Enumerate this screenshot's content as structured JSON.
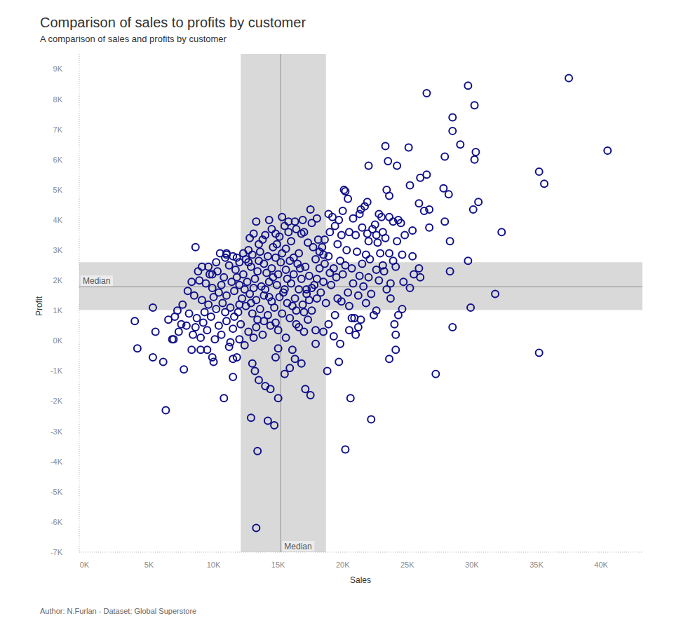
{
  "chart_data": {
    "type": "scatter",
    "title": "Comparison of sales to profits by customer",
    "subtitle": "A comparison of sales and profits by customer",
    "x_label": "Sales",
    "y_label": "Profit",
    "caption": "Author: N.Furlan - Dataset: Global Superstore",
    "color": "#10108a",
    "marker": "open_circle",
    "grid": false,
    "xlim": [
      -400,
      43200
    ],
    "ylim": [
      -7000,
      9500
    ],
    "xticks": [
      {
        "value": 0,
        "label": "0K"
      },
      {
        "value": 5000,
        "label": "5K"
      },
      {
        "value": 10000,
        "label": "10K"
      },
      {
        "value": 15000,
        "label": "15K"
      },
      {
        "value": 20000,
        "label": "20K"
      },
      {
        "value": 25000,
        "label": "25K"
      },
      {
        "value": 30000,
        "label": "30K"
      },
      {
        "value": 35000,
        "label": "35K"
      },
      {
        "value": 40000,
        "label": "40K"
      }
    ],
    "yticks": [
      {
        "value": -7000,
        "label": "-7K"
      },
      {
        "value": -6000,
        "label": "-6K"
      },
      {
        "value": -5000,
        "label": "-5K"
      },
      {
        "value": -4000,
        "label": "-4K"
      },
      {
        "value": -3000,
        "label": "-3K"
      },
      {
        "value": -2000,
        "label": "-2K"
      },
      {
        "value": -1000,
        "label": "-1K"
      },
      {
        "value": 0,
        "label": "0K"
      },
      {
        "value": 1000,
        "label": "1K"
      },
      {
        "value": 2000,
        "label": "2K"
      },
      {
        "value": 3000,
        "label": "3K"
      },
      {
        "value": 4000,
        "label": "4K"
      },
      {
        "value": 5000,
        "label": "5K"
      },
      {
        "value": 6000,
        "label": "6K"
      },
      {
        "value": 7000,
        "label": "7K"
      },
      {
        "value": 8000,
        "label": "8K"
      },
      {
        "value": 9000,
        "label": "9K"
      }
    ],
    "bands": [
      {
        "axis": "x",
        "range": [
          12100,
          18700
        ]
      },
      {
        "axis": "y",
        "range": [
          1020,
          2600
        ]
      }
    ],
    "reference_lines": [
      {
        "axis": "x",
        "value": 15200,
        "label": "Median"
      },
      {
        "axis": "y",
        "value": 1790,
        "label": "Median"
      }
    ],
    "x": [
      37500,
      40500,
      26500,
      29700,
      30200,
      28500,
      28500,
      29100,
      30300,
      30200,
      23300,
      25100,
      27900,
      35200,
      35600,
      22000,
      23500,
      24200,
      26000,
      26500,
      27800,
      28200,
      25200,
      23400,
      23600,
      30500,
      30100,
      26700,
      26300,
      25900,
      32300,
      27900,
      28300,
      26700,
      25400,
      29700,
      25900,
      26000,
      28300,
      25200,
      31800,
      29900,
      28500,
      27200,
      35200,
      24000,
      24100,
      24100,
      23600,
      22200,
      20600,
      20200,
      19700,
      18800,
      17500,
      17100,
      13300,
      13400,
      12900,
      14200,
      14700,
      15000,
      14400,
      14000,
      13500,
      13200,
      13000,
      11500,
      10800,
      6300,
      3900,
      4100,
      5300,
      5500,
      5300,
      6100,
      7700,
      8300,
      8600,
      9000,
      9500,
      9900,
      10000,
      11200,
      11500,
      11800,
      15500,
      15900,
      16300,
      16800,
      17900,
      16100,
      15000,
      14800,
      20100,
      20200,
      20400,
      21900,
      21700,
      21400,
      21300,
      20000,
      19700,
      18900,
      19200,
      20800,
      22800,
      23000,
      23600,
      24300,
      24500,
      23900,
      22500,
      22300,
      21500,
      21900,
      22600,
      23100,
      23300,
      22700,
      22000,
      21000,
      20500,
      19900,
      19000,
      18600,
      18400,
      19600,
      20300,
      21100,
      21800,
      22900,
      23600,
      24600,
      25400,
      24200,
      24800,
      23900,
      23100,
      22600,
      21500,
      20700,
      19800,
      18900,
      18200,
      17700,
      17300,
      16800,
      16400,
      17500,
      15300,
      15800,
      14300,
      14800,
      14000,
      13100,
      12700,
      13500,
      12300,
      11000,
      10500,
      10900,
      9600,
      8800,
      9900,
      11800,
      15500,
      16000,
      15600,
      14600,
      16600,
      17900,
      18600,
      19300,
      20000,
      21300,
      22000,
      22800,
      23700,
      24700,
      25500,
      23400,
      22200,
      21200,
      20400,
      19600,
      18700,
      19900,
      20500,
      21800,
      22600,
      23700,
      24600,
      22400,
      21400,
      20900,
      20700,
      19400,
      18900,
      19300,
      18500,
      17900,
      17000,
      16600,
      17300,
      17600,
      18000,
      17200,
      16400,
      24300,
      21200,
      21000,
      19800,
      20500,
      12000,
      12500,
      13000,
      13600,
      14200,
      14800,
      15300,
      15900,
      16500,
      17100,
      11200,
      11700,
      12300,
      12900,
      13400,
      13900,
      14500,
      15000,
      15600,
      16200,
      16800,
      17400,
      10300,
      10800,
      11400,
      12000,
      12600,
      13200,
      13700,
      14300,
      14900,
      15400,
      16000,
      16600,
      17200,
      17800,
      9400,
      9900,
      10400,
      11000,
      11600,
      12200,
      12800,
      13300,
      13900,
      14500,
      15100,
      15700,
      16300,
      16900,
      8500,
      9100,
      9600,
      10200,
      10700,
      11300,
      11900,
      12500,
      13000,
      13600,
      14200,
      14700,
      15300,
      15900,
      16400,
      7600,
      8100,
      8700,
      9200,
      9800,
      10400,
      11000,
      11500,
      12100,
      12700,
      13300,
      13800,
      14400,
      15000,
      15600,
      7000,
      7300,
      7900,
      8400,
      9000,
      9500,
      10100,
      10600,
      11300,
      12000,
      12400,
      13100,
      6800,
      6900,
      6500,
      7200,
      8000,
      8300,
      8900,
      9700,
      9100,
      11000,
      12700,
      14900,
      13800,
      15100,
      15800,
      16300,
      17000,
      17600,
      18100,
      18500,
      18200,
      18000,
      17600,
      18300,
      16100,
      14000,
      14600,
      13500,
      12400,
      11800,
      10600,
      10000,
      10900,
      12000,
      13900,
      15500,
      16700,
      14100,
      15200,
      13100,
      12900,
      11600,
      14800,
      16200,
      15700,
      13400,
      10200,
      9300,
      8600,
      7500,
      14300,
      17000,
      17400,
      19100,
      19500,
      20800,
      19000,
      18500,
      20200,
      21600,
      23200,
      22100,
      24100,
      19400,
      18000,
      16900,
      14500,
      13300,
      12800,
      11500
    ],
    "values": [
      8700,
      6300,
      8200,
      8450,
      7800,
      7400,
      6950,
      6500,
      6250,
      6000,
      6450,
      6400,
      6100,
      5600,
      5200,
      5800,
      5950,
      5800,
      5400,
      5500,
      5050,
      4850,
      5150,
      5000,
      4800,
      4600,
      4350,
      4350,
      4300,
      4550,
      3600,
      3950,
      3300,
      3750,
      3650,
      2650,
      2400,
      2100,
      2300,
      1750,
      1550,
      1100,
      450,
      -1100,
      -400,
      550,
      200,
      -300,
      -600,
      -2600,
      -1900,
      -3600,
      -700,
      -1000,
      -1800,
      -1600,
      -6200,
      -3650,
      -2550,
      -2650,
      -2800,
      -1900,
      -1600,
      -1500,
      -1300,
      -1000,
      -750,
      -1200,
      -1900,
      -2300,
      650,
      -250,
      1100,
      300,
      -550,
      -700,
      -950,
      -300,
      3100,
      -300,
      -300,
      -550,
      -700,
      -200,
      -600,
      -550,
      -1100,
      -900,
      -600,
      -750,
      -100,
      -300,
      -250,
      -550,
      5000,
      4950,
      4700,
      4600,
      4450,
      4350,
      4200,
      4300,
      4000,
      4200,
      4100,
      4050,
      4200,
      4100,
      4100,
      4000,
      3900,
      3950,
      3850,
      3700,
      3750,
      3550,
      3500,
      3600,
      3400,
      3250,
      3300,
      3500,
      3600,
      3500,
      3600,
      3350,
      3100,
      3200,
      3000,
      2950,
      2850,
      2900,
      2900,
      2850,
      2800,
      3300,
      3500,
      2650,
      2500,
      2350,
      2550,
      2400,
      2650,
      2800,
      2950,
      3100,
      3250,
      3550,
      3700,
      4350,
      4100,
      3950,
      4000,
      3550,
      3500,
      3550,
      3000,
      3200,
      2900,
      2850,
      2900,
      2750,
      2450,
      2300,
      2200,
      2750,
      3800,
      3300,
      3050,
      3100,
      2900,
      2700,
      2550,
      2400,
      2200,
      2150,
      2100,
      2000,
      1900,
      1950,
      2200,
      1700,
      1550,
      1500,
      1600,
      1400,
      1250,
      1300,
      1150,
      1250,
      1000,
      1400,
      1050,
      850,
      700,
      750,
      750,
      850,
      550,
      150,
      300,
      350,
      300,
      450,
      700,
      1000,
      1400,
      1700,
      1000,
      850,
      450,
      200,
      -100,
      350,
      2600,
      2700,
      2850,
      2950,
      2800,
      2750,
      2900,
      2650,
      2550,
      2450,
      2500,
      2350,
      2200,
      2450,
      2300,
      2550,
      2400,
      2200,
      2350,
      2200,
      2050,
      2150,
      2300,
      2100,
      1950,
      1850,
      1950,
      2050,
      1800,
      1950,
      1850,
      1600,
      1900,
      1700,
      1550,
      1850,
      1900,
      1750,
      1600,
      1500,
      1650,
      1400,
      1550,
      1350,
      1500,
      1300,
      1450,
      1250,
      1400,
      1200,
      1500,
      1350,
      1200,
      1050,
      1250,
      1100,
      950,
      1150,
      900,
      1050,
      850,
      1100,
      900,
      750,
      550,
      1200,
      900,
      750,
      600,
      800,
      500,
      650,
      400,
      550,
      300,
      450,
      200,
      500,
      350,
      100,
      800,
      300,
      500,
      200,
      100,
      350,
      50,
      200,
      -50,
      50,
      -150,
      100,
      50,
      50,
      700,
      1000,
      1650,
      1950,
      2000,
      2200,
      2450,
      2900,
      2600,
      3200,
      3350,
      3450,
      3600,
      3950,
      3600,
      3900,
      3350,
      2850,
      2400,
      2050,
      1750,
      1600,
      1150,
      1700,
      2100,
      2650,
      1700,
      2100,
      1850,
      1450,
      950,
      1200,
      650,
      1700,
      2400,
      2250,
      2600,
      1750,
      1250,
      800,
      600,
      2750,
      2050,
      700,
      2600,
      950,
      450,
      550,
      1450,
      950,
      1350,
      1850,
      2100,
      1900,
      2250,
      1950,
      2500,
      1800,
      2300,
      2700,
      2450,
      3800,
      4050,
      4000,
      3700,
      3950,
      3400,
      2800
    ]
  }
}
